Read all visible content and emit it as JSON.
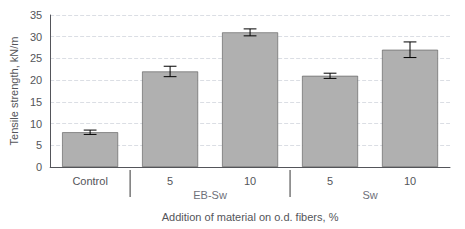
{
  "chart_data": {
    "type": "bar",
    "categories": [
      "Control",
      "5",
      "10",
      "5",
      "10"
    ],
    "values": [
      8.0,
      22.0,
      31.0,
      21.0,
      27.0
    ],
    "errors": [
      0.5,
      1.2,
      0.8,
      0.6,
      1.8
    ],
    "color": "#b0b0b0",
    "groups": [
      null,
      "EB-Sw",
      "EB-Sw",
      "Sw",
      "Sw"
    ],
    "ylabel": "Tensile strength, kN/m",
    "xlabel": "Addition of material on o.d. fibers, %",
    "ylim": [
      0,
      35
    ],
    "yticks": [
      0,
      5,
      10,
      15,
      20,
      25,
      30,
      35
    ],
    "grid": true
  }
}
